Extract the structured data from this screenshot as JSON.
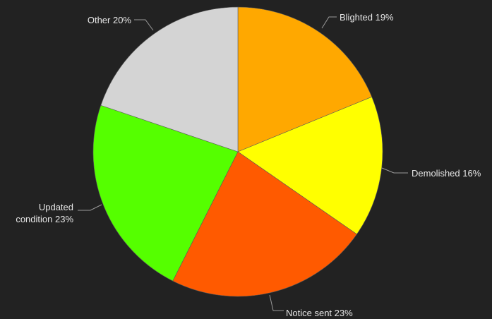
{
  "colors": {
    "background": "#222222",
    "text": "#e6e6e6",
    "leader": "#9a9a9a"
  },
  "chart_data": {
    "type": "pie",
    "start_angle_deg": 0,
    "direction": "clockwise",
    "slices": [
      {
        "label_lines": [
          "Blighted 19%"
        ],
        "value": 19,
        "color": "#ffa800"
      },
      {
        "label_lines": [
          "Demolished 16%"
        ],
        "value": 16,
        "color": "#ffff00"
      },
      {
        "label_lines": [
          "Notice sent 23%"
        ],
        "value": 23,
        "color": "#ff5a00"
      },
      {
        "label_lines": [
          "Updated",
          "condition 23%"
        ],
        "value": 23,
        "color": "#55ff00"
      },
      {
        "label_lines": [
          "Other 20%"
        ],
        "value": 20,
        "color": "#d4d4d4"
      }
    ]
  }
}
